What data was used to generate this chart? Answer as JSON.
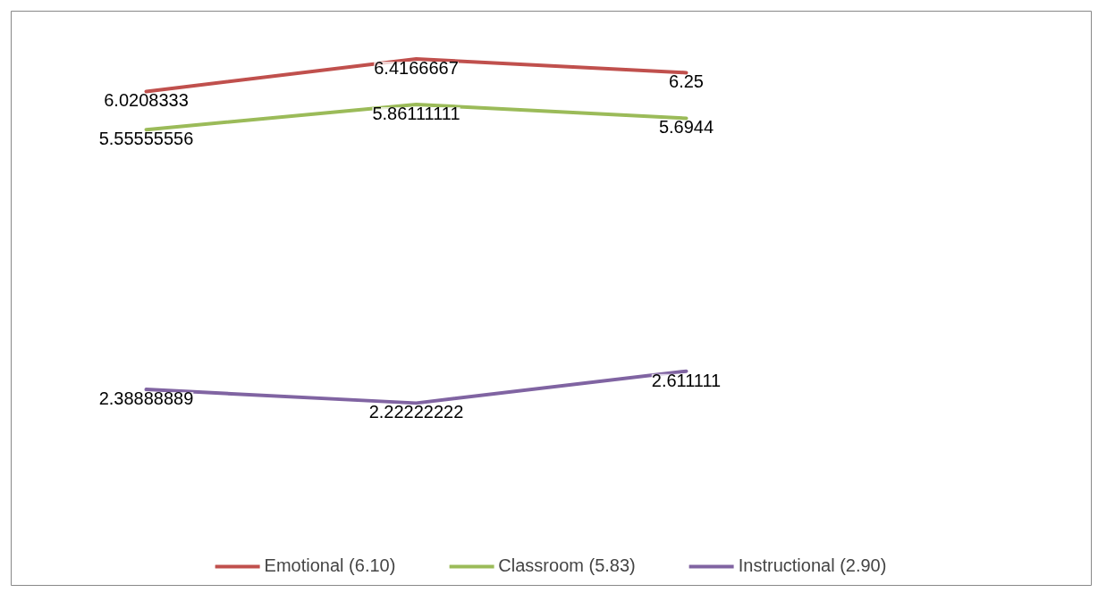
{
  "chart_data": {
    "type": "line",
    "categories": [
      null,
      null,
      null,
      null
    ],
    "ylim": [
      0,
      7
    ],
    "tick_labels": false,
    "grid": false,
    "legend": "bottom",
    "data_labels": true,
    "marker": "none",
    "line_style": "solid",
    "series": [
      {
        "name": "Emotional (6.10)",
        "color": "#c0504d",
        "values": [
          6.0208333,
          6.4166667,
          6.25,
          null
        ],
        "value_labels": [
          "6.0208333",
          "6.4166667",
          "6.25",
          null
        ]
      },
      {
        "name": "Classroom (5.83)",
        "color": "#9bbb59",
        "values": [
          5.55555556,
          5.86111111,
          5.6944,
          null
        ],
        "value_labels": [
          "5.55555556",
          "5.86111111",
          "5.6944",
          null
        ]
      },
      {
        "name": "Instructional (2.90)",
        "color": "#8064a2",
        "values": [
          2.38888889,
          2.22222222,
          2.611111,
          null
        ],
        "value_labels": [
          "2.38888889",
          "2.22222222",
          "2.611111",
          null
        ]
      }
    ]
  }
}
